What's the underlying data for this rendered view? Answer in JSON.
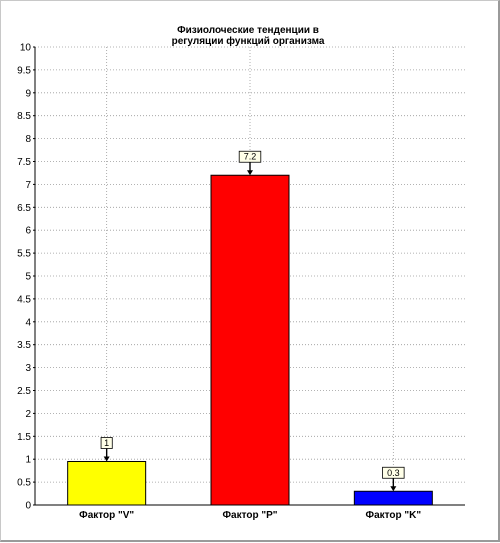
{
  "chart_data": {
    "type": "bar",
    "title_lines": [
      "Физиолоческие тенденции в",
      "регуляции функций организма"
    ],
    "categories": [
      "Фактор \"V\"",
      "Фактор \"P\"",
      "Фактор \"K\""
    ],
    "values": [
      0.95,
      7.2,
      0.3
    ],
    "data_labels": [
      "1",
      "7.2",
      "0.3"
    ],
    "colors": [
      "#ffff00",
      "#ff0000",
      "#0000ff"
    ],
    "ylim": [
      0,
      10
    ],
    "ytick_step": 0.5,
    "yticks": [
      "0",
      "0.5",
      "1",
      "1.5",
      "2",
      "2.5",
      "3",
      "3.5",
      "4",
      "4.5",
      "5",
      "5.5",
      "6",
      "6.5",
      "7",
      "7.5",
      "8",
      "8.5",
      "9",
      "9.5",
      "10"
    ],
    "grid": true,
    "legend": "none",
    "xlabel": "",
    "ylabel": ""
  }
}
